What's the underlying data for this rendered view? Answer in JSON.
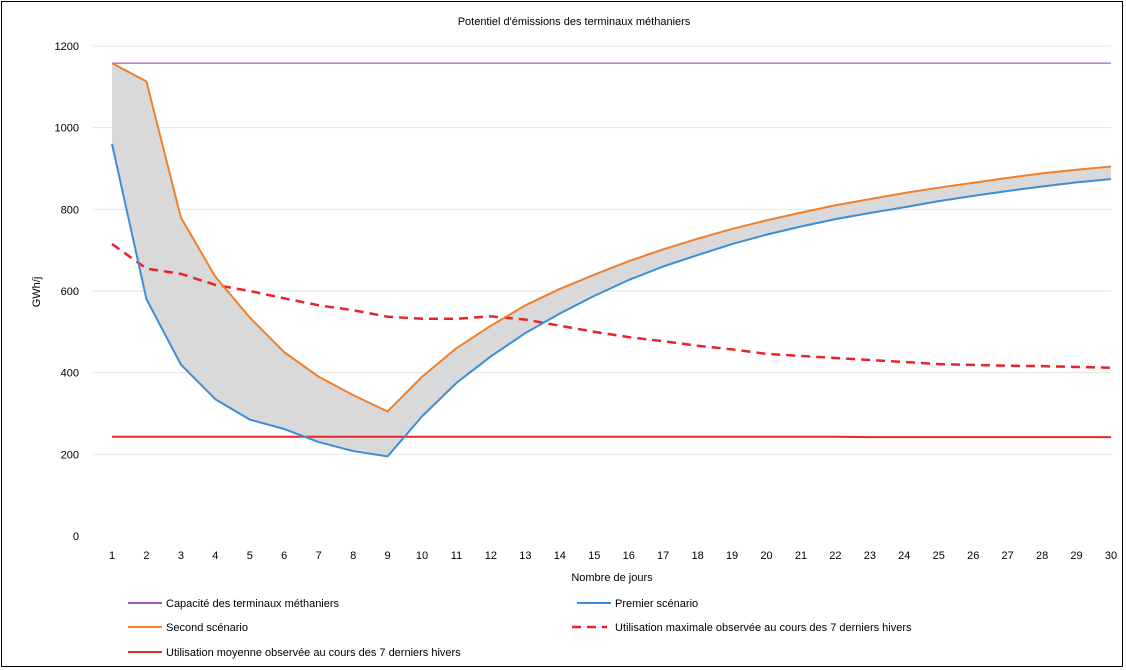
{
  "chart_data": {
    "type": "line",
    "title": "Potentiel d'émissions des terminaux méthaniers",
    "xlabel": "Nombre de jours",
    "ylabel": "GWh/j",
    "ylim": [
      0,
      1200
    ],
    "yticks": [
      0,
      200,
      400,
      600,
      800,
      1000,
      1200
    ],
    "x": [
      1,
      2,
      3,
      4,
      5,
      6,
      7,
      8,
      9,
      10,
      11,
      12,
      13,
      14,
      15,
      16,
      17,
      18,
      19,
      20,
      21,
      22,
      23,
      24,
      25,
      26,
      27,
      28,
      29,
      30
    ],
    "grid": "horizontal",
    "legend_position": "bottom",
    "series": [
      {
        "name": "Capacité des terminaux méthaniers",
        "color": "#a15bc4",
        "style": "solid",
        "values": [
          1158,
          1158,
          1158,
          1158,
          1158,
          1158,
          1158,
          1158,
          1158,
          1158,
          1158,
          1158,
          1158,
          1158,
          1158,
          1158,
          1158,
          1158,
          1158,
          1158,
          1158,
          1158,
          1158,
          1158,
          1158,
          1158,
          1158,
          1158,
          1158,
          1158
        ]
      },
      {
        "name": "Premier scénario",
        "color": "#3a8fd6",
        "style": "solid",
        "values": [
          960,
          580,
          420,
          335,
          285,
          262,
          230,
          208,
          195,
          293,
          375,
          440,
          497,
          545,
          588,
          627,
          660,
          688,
          715,
          738,
          758,
          776,
          791,
          805,
          820,
          833,
          845,
          856,
          866,
          874
        ]
      },
      {
        "name": "Second scénario",
        "color": "#f07f2a",
        "style": "solid",
        "values": [
          1158,
          1113,
          780,
          635,
          535,
          450,
          390,
          345,
          305,
          390,
          460,
          515,
          565,
          605,
          640,
          673,
          702,
          728,
          752,
          773,
          792,
          810,
          825,
          840,
          853,
          865,
          877,
          888,
          897,
          905
        ]
      },
      {
        "name": "Utilisation maximale observée au cours des 7 derniers hivers",
        "color": "#e8232a",
        "style": "dashed",
        "values": [
          715,
          655,
          642,
          615,
          600,
          582,
          565,
          553,
          537,
          532,
          532,
          538,
          530,
          515,
          500,
          487,
          477,
          466,
          457,
          446,
          441,
          436,
          431,
          426,
          421,
          419,
          417,
          416,
          414,
          412
        ]
      },
      {
        "name": "Utilisation moyenne observée au cours des 7 derniers hivers",
        "color": "#e8232a",
        "style": "solid",
        "values": [
          243,
          243,
          243,
          243,
          243,
          243,
          243,
          243,
          243,
          243,
          243,
          243,
          243,
          243,
          243,
          243,
          243,
          243,
          243,
          243,
          243,
          243,
          242,
          242,
          242,
          242,
          242,
          242,
          242,
          242
        ]
      }
    ],
    "band": {
      "between": [
        "Premier scénario",
        "Second scénario"
      ],
      "color": "#d9d9d9"
    }
  }
}
